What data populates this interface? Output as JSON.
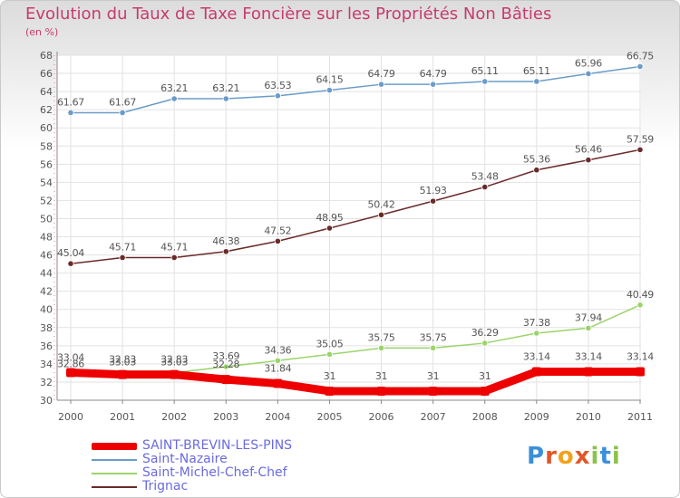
{
  "title": "Evolution du Taux de Taxe Foncière sur les Propriétés Non Bâties",
  "unit_label": "(en %)",
  "brand": {
    "text": "Proxiti",
    "colors": [
      "#3b8fd9",
      "#e2562a",
      "#f2a21a",
      "#e2562a",
      "#8bc34a",
      "#3b8fd9",
      "#8bc34a"
    ]
  },
  "chart_data": {
    "type": "line",
    "x": [
      "2000",
      "2001",
      "2002",
      "2003",
      "2004",
      "2005",
      "2006",
      "2007",
      "2008",
      "2009",
      "2010",
      "2011"
    ],
    "ylim": [
      30,
      68
    ],
    "yticks": [
      30,
      32,
      34,
      36,
      38,
      40,
      42,
      44,
      46,
      48,
      50,
      52,
      54,
      56,
      58,
      60,
      62,
      64,
      66,
      68
    ],
    "grid": true,
    "legend": "bottom-left",
    "series": [
      {
        "name": "SAINT-BREVIN-LES-PINS",
        "color": "#ee0000",
        "width": 9,
        "values": [
          33.04,
          32.83,
          32.83,
          32.28,
          31.84,
          31,
          31,
          31,
          31,
          33.14,
          33.14,
          33.14
        ],
        "labels": [
          "33.04",
          "32.83",
          "32.83",
          "32.28",
          "31.84",
          "31",
          "31",
          "31",
          "31",
          "33.14",
          "33.14",
          "33.14"
        ]
      },
      {
        "name": "Saint-Nazaire",
        "color": "#6b9cc9",
        "width": 1.5,
        "values": [
          61.67,
          61.67,
          63.21,
          63.21,
          63.53,
          64.15,
          64.79,
          64.79,
          65.11,
          65.11,
          65.96,
          66.75
        ],
        "labels": [
          "61.67",
          "61.67",
          "63.21",
          "63.21",
          "63.53",
          "64.15",
          "64.79",
          "64.79",
          "65.11",
          "65.11",
          "65.96",
          "66.75"
        ]
      },
      {
        "name": "Saint-Michel-Chef-Chef",
        "color": "#9bd46a",
        "width": 1.5,
        "values": [
          32.86,
          33.03,
          33.03,
          33.69,
          34.36,
          35.05,
          35.75,
          35.75,
          36.29,
          37.38,
          37.94,
          40.49
        ],
        "labels": [
          "32.86",
          "33.03",
          "33.03",
          "33.69",
          "34.36",
          "35.05",
          "35.75",
          "35.75",
          "36.29",
          "37.38",
          "37.94",
          "40.49"
        ]
      },
      {
        "name": "Trignac",
        "color": "#6b2a2a",
        "width": 1.5,
        "values": [
          45.04,
          45.71,
          45.71,
          46.38,
          47.52,
          48.95,
          50.42,
          51.93,
          53.48,
          55.36,
          56.46,
          57.59
        ],
        "labels": [
          "45.04",
          "45.71",
          "45.71",
          "46.38",
          "47.52",
          "48.95",
          "50.42",
          "51.93",
          "53.48",
          "55.36",
          "56.46",
          "57.59"
        ]
      }
    ]
  }
}
